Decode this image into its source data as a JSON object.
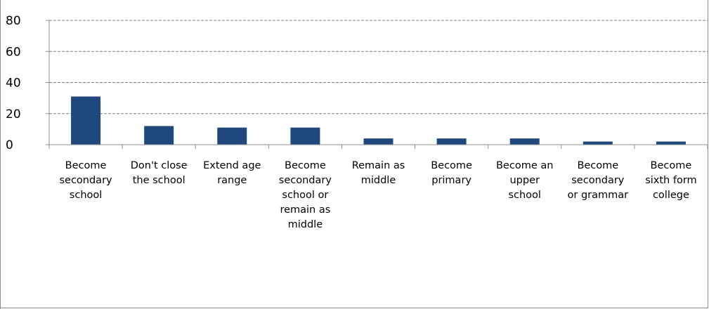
{
  "chart_data": {
    "type": "bar",
    "categories": [
      [
        "Become",
        "secondary",
        "school"
      ],
      [
        "Don't close",
        "the school"
      ],
      [
        "Extend age",
        "range"
      ],
      [
        "Become",
        "secondary",
        "school or",
        "remain as",
        "middle"
      ],
      [
        "Remain as",
        "middle"
      ],
      [
        "Become",
        "primary"
      ],
      [
        "Become an",
        "upper",
        "school"
      ],
      [
        "Become",
        "secondary",
        "or grammar"
      ],
      [
        "Become",
        "sixth form",
        "college"
      ]
    ],
    "values": [
      31,
      12,
      11,
      11,
      4,
      4,
      4,
      2,
      2
    ],
    "ylim": [
      0,
      80
    ],
    "yticks": [
      "0",
      "20",
      "40",
      "60",
      "80"
    ],
    "grid": true,
    "bar_color": "#1f497d",
    "title": "",
    "xlabel": "",
    "ylabel": ""
  }
}
